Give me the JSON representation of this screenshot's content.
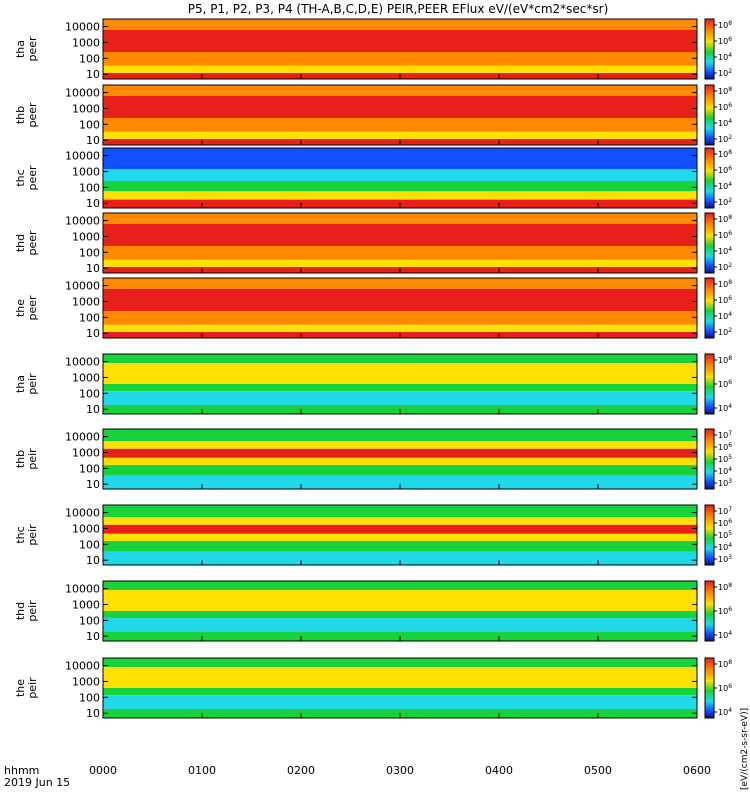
{
  "title": "P5, P1, P2, P3, P4 (TH-A,B,C,D,E) PEIR,PEER EFlux eV/(eV*cm2*sec*sr)",
  "time_axis": {
    "label": "hhmm",
    "date": "2019 Jun 15",
    "ticks": [
      "0000",
      "0100",
      "0200",
      "0300",
      "0400",
      "0500",
      "0600"
    ]
  },
  "colorbar_title": "[eV/(cm2-s-sr-eV)]",
  "colors": {
    "red": "#e8201a",
    "orange": "#ff8a00",
    "yellow": "#ffe000",
    "green": "#18d23c",
    "cyan": "#20d8e8",
    "blue": "#1050ff",
    "black": "#000000"
  },
  "chart_data": [
    {
      "type": "heatmap",
      "probe": "tha",
      "species": "peer",
      "ylabel": [
        "tha",
        "peer"
      ],
      "y_ticks": [
        "10000",
        "1000",
        "100",
        "10"
      ],
      "ylim_eV": [
        5,
        30000
      ],
      "y_scale": "log",
      "colorbar_ticks": [
        "10^8",
        "10^6",
        "10^4",
        "10^2"
      ],
      "colorbar_scale": "log"
    },
    {
      "type": "heatmap",
      "probe": "thb",
      "species": "peer",
      "ylabel": [
        "thb",
        "peer"
      ],
      "y_ticks": [
        "10000",
        "1000",
        "100",
        "10"
      ],
      "ylim_eV": [
        5,
        30000
      ],
      "y_scale": "log",
      "colorbar_ticks": [
        "10^8",
        "10^6",
        "10^4",
        "10^2"
      ],
      "colorbar_scale": "log"
    },
    {
      "type": "heatmap",
      "probe": "thc",
      "species": "peer",
      "ylabel": [
        "thc",
        "peer"
      ],
      "y_ticks": [
        "10000",
        "1000",
        "100",
        "10"
      ],
      "ylim_eV": [
        5,
        30000
      ],
      "y_scale": "log",
      "colorbar_ticks": [
        "10^8",
        "10^6",
        "10^4",
        "10^2"
      ],
      "colorbar_scale": "log"
    },
    {
      "type": "heatmap",
      "probe": "thd",
      "species": "peer",
      "ylabel": [
        "thd",
        "peer"
      ],
      "y_ticks": [
        "10000",
        "1000",
        "100",
        "10"
      ],
      "ylim_eV": [
        5,
        30000
      ],
      "y_scale": "log",
      "colorbar_ticks": [
        "10^8",
        "10^6",
        "10^4",
        "10^2"
      ],
      "colorbar_scale": "log"
    },
    {
      "type": "heatmap",
      "probe": "the",
      "species": "peer",
      "ylabel": [
        "the",
        "peer"
      ],
      "y_ticks": [
        "10000",
        "1000",
        "100",
        "10"
      ],
      "ylim_eV": [
        5,
        30000
      ],
      "y_scale": "log",
      "colorbar_ticks": [
        "10^8",
        "10^6",
        "10^4",
        "10^2"
      ],
      "colorbar_scale": "log"
    },
    {
      "type": "heatmap",
      "probe": "tha",
      "species": "peir",
      "ylabel": [
        "tha",
        "peir"
      ],
      "y_ticks": [
        "10000",
        "1000",
        "100",
        "10"
      ],
      "ylim_eV": [
        5,
        30000
      ],
      "y_scale": "log",
      "colorbar_ticks": [
        "10^8",
        "10^6",
        "10^4"
      ],
      "colorbar_scale": "log"
    },
    {
      "type": "heatmap",
      "probe": "thb",
      "species": "peir",
      "ylabel": [
        "thb",
        "peir"
      ],
      "y_ticks": [
        "10000",
        "1000",
        "100",
        "10"
      ],
      "ylim_eV": [
        5,
        30000
      ],
      "y_scale": "log",
      "colorbar_ticks": [
        "10^7",
        "10^6",
        "10^5",
        "10^4",
        "10^3"
      ],
      "colorbar_scale": "log"
    },
    {
      "type": "heatmap",
      "probe": "thc",
      "species": "peir",
      "ylabel": [
        "thc",
        "peir"
      ],
      "y_ticks": [
        "10000",
        "1000",
        "100",
        "10"
      ],
      "ylim_eV": [
        5,
        30000
      ],
      "y_scale": "log",
      "colorbar_ticks": [
        "10^7",
        "10^6",
        "10^5",
        "10^4",
        "10^3"
      ],
      "colorbar_scale": "log"
    },
    {
      "type": "heatmap",
      "probe": "thd",
      "species": "peir",
      "ylabel": [
        "thd",
        "peir"
      ],
      "y_ticks": [
        "10000",
        "1000",
        "100",
        "10"
      ],
      "ylim_eV": [
        5,
        30000
      ],
      "y_scale": "log",
      "colorbar_ticks": [
        "10^8",
        "10^6",
        "10^4"
      ],
      "colorbar_scale": "log"
    },
    {
      "type": "heatmap",
      "probe": "the",
      "species": "peir",
      "ylabel": [
        "the",
        "peir"
      ],
      "y_ticks": [
        "10000",
        "1000",
        "100",
        "10"
      ],
      "ylim_eV": [
        5,
        30000
      ],
      "y_scale": "log",
      "colorbar_ticks": [
        "10^8",
        "10^6",
        "10^4"
      ],
      "colorbar_scale": "log"
    }
  ]
}
